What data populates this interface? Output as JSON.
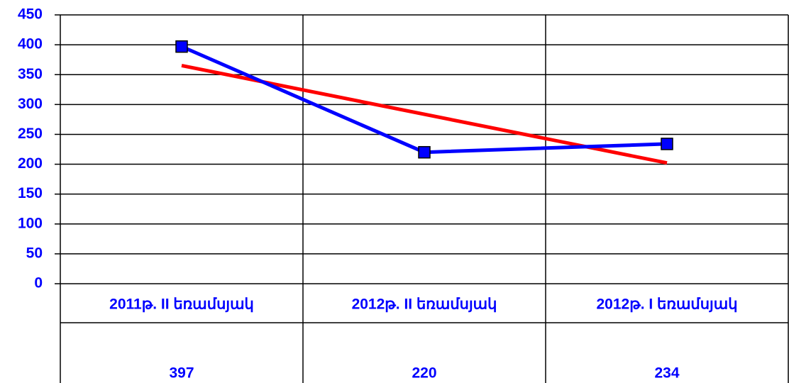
{
  "chart_data": {
    "type": "line",
    "categories": [
      "2011թ. II եռամսյակ",
      "2012թ. II եռամսյակ",
      "2012թ. I եռամսյակ"
    ],
    "values": [
      397,
      220,
      234
    ],
    "color": "#0000ff",
    "marker_color": "#0000ff",
    "trendline": {
      "kind": "linear",
      "color": "#ff0000"
    },
    "ylim": [
      0,
      450
    ],
    "yticks": [
      0,
      50,
      100,
      150,
      200,
      250,
      300,
      350,
      400,
      450
    ],
    "grid": true,
    "data_table": true
  }
}
